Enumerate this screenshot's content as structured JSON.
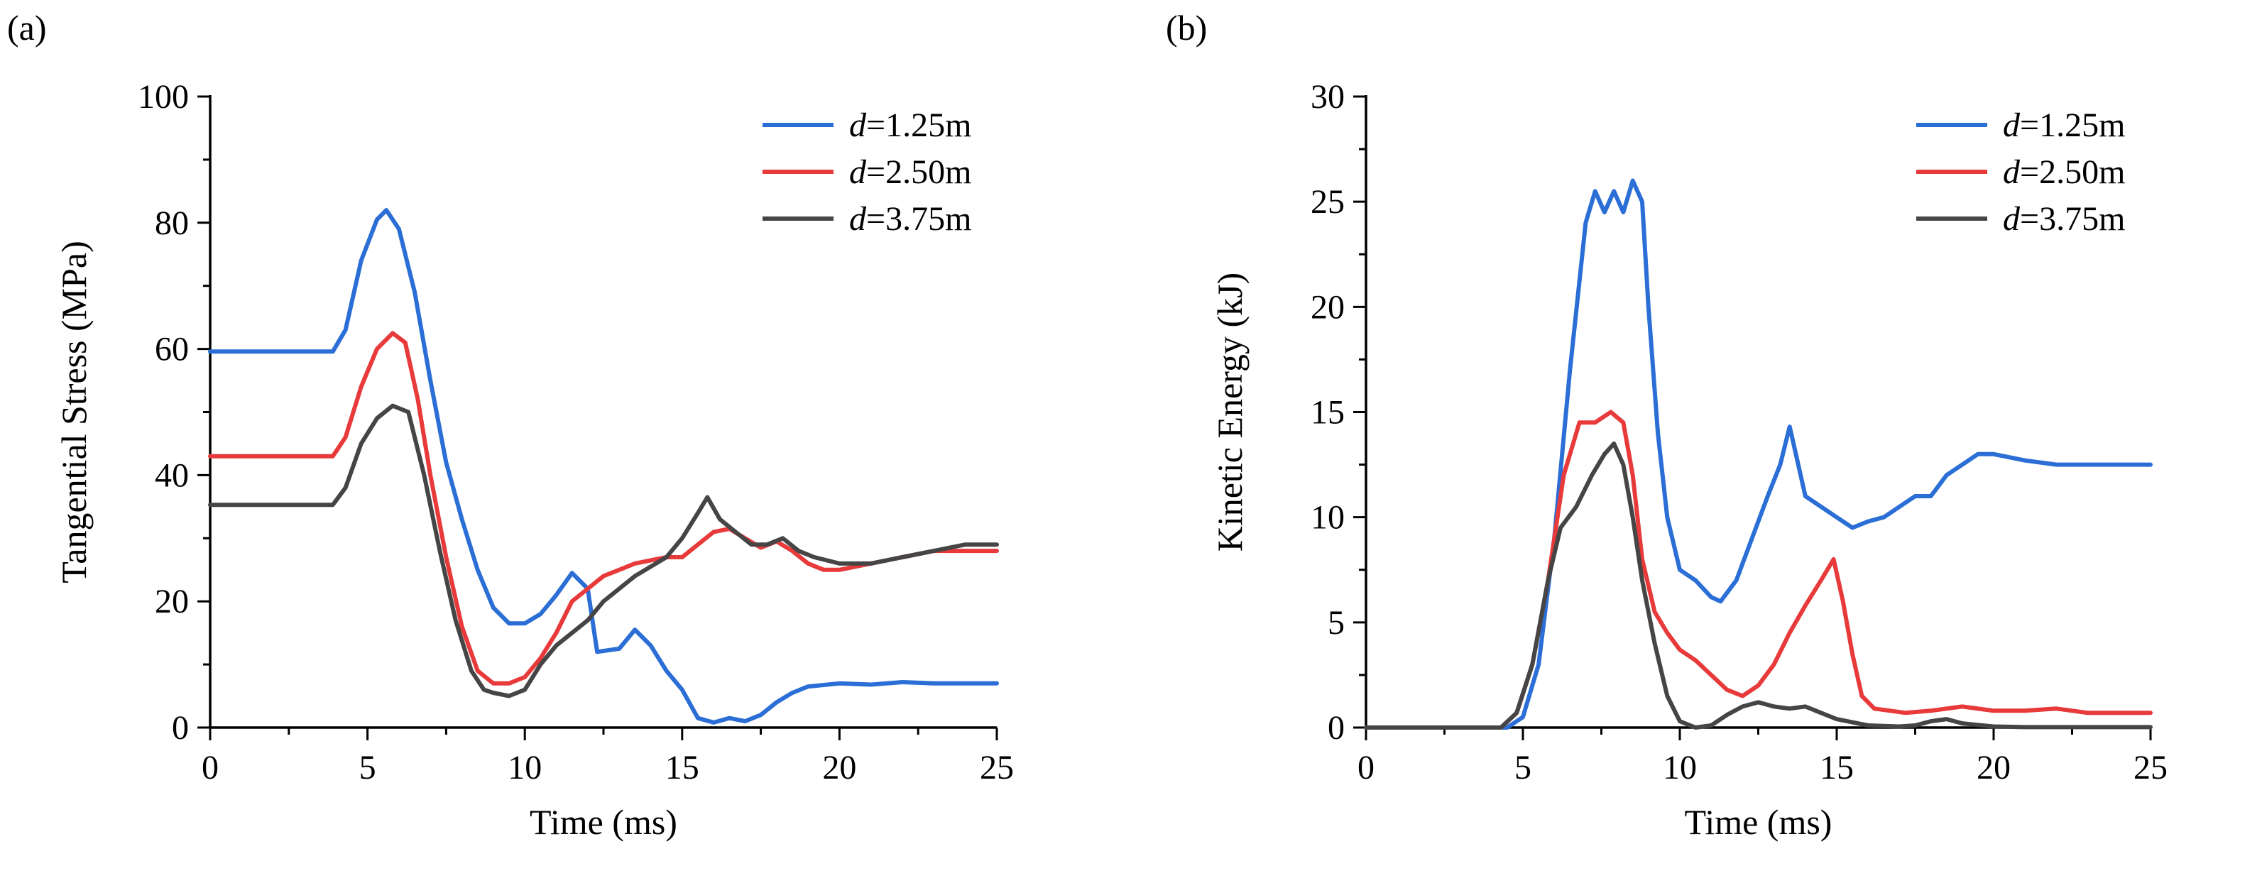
{
  "chart_data": [
    {
      "panel": "(a)",
      "type": "line",
      "title": "",
      "xlabel": "Time (ms)",
      "ylabel": "Tangential Stress (MPa)",
      "xlim": [
        0,
        25
      ],
      "ylim": [
        0,
        100
      ],
      "xticks": [
        0,
        5,
        10,
        15,
        20,
        25
      ],
      "yticks": [
        0,
        20,
        40,
        60,
        80,
        100
      ],
      "grid": false,
      "legend_position": "top-right",
      "series": [
        {
          "name": "d=1.25m",
          "var": "d",
          "rest": "=1.25m",
          "color": "#2a6ed6",
          "x": [
            0,
            3.9,
            4.3,
            4.8,
            5.3,
            5.6,
            6.0,
            6.5,
            7.0,
            7.5,
            8.0,
            8.5,
            9.0,
            9.5,
            10.0,
            10.5,
            11.0,
            11.5,
            12.0,
            12.3,
            13.0,
            13.5,
            14.0,
            14.5,
            15.0,
            15.5,
            16.0,
            16.5,
            17.0,
            17.5,
            18.0,
            18.5,
            19.0,
            20.0,
            21.0,
            22.0,
            23.0,
            24.0,
            25.0
          ],
          "y": [
            59.6,
            59.6,
            63,
            74,
            80.5,
            82,
            79,
            69,
            55,
            42,
            33,
            25,
            19,
            16.5,
            16.5,
            18,
            21,
            24.5,
            22,
            12,
            12.5,
            15.5,
            13,
            9,
            6,
            1.5,
            0.8,
            1.5,
            1,
            2,
            4,
            5.5,
            6.5,
            7,
            6.8,
            7.2,
            7,
            7,
            7
          ]
        },
        {
          "name": "d=2.50m",
          "var": "d",
          "rest": "=2.50m",
          "color": "#e83a3a",
          "x": [
            0,
            3.9,
            4.3,
            4.8,
            5.3,
            5.8,
            6.2,
            6.6,
            7.0,
            7.5,
            8.0,
            8.5,
            9.0,
            9.5,
            10.0,
            10.5,
            11.0,
            11.5,
            12.0,
            12.5,
            13.0,
            13.5,
            14.0,
            14.5,
            15.0,
            15.5,
            16.0,
            16.5,
            17.0,
            17.5,
            18.0,
            18.5,
            19.0,
            19.5,
            20.0,
            21.0,
            22.0,
            23.0,
            24.0,
            25.0
          ],
          "y": [
            43,
            43,
            46,
            54,
            60,
            62.5,
            61,
            52,
            40,
            27,
            16,
            9,
            7,
            7,
            8,
            11,
            15,
            20,
            22,
            24,
            25,
            26,
            26.5,
            27,
            27,
            29,
            31,
            31.5,
            30,
            28.5,
            29.5,
            28,
            26,
            25,
            25,
            26,
            27,
            28,
            28,
            28
          ]
        },
        {
          "name": "d=3.75m",
          "var": "d",
          "rest": "=3.75m",
          "color": "#454545",
          "x": [
            0,
            3.9,
            4.3,
            4.8,
            5.3,
            5.8,
            6.3,
            6.8,
            7.3,
            7.8,
            8.3,
            8.7,
            9.0,
            9.5,
            10.0,
            10.5,
            11.0,
            11.5,
            12.0,
            12.5,
            13.0,
            13.5,
            14.0,
            14.5,
            15.0,
            15.5,
            15.8,
            16.2,
            16.7,
            17.2,
            17.7,
            18.2,
            18.7,
            19.2,
            20.0,
            21.0,
            22.0,
            23.0,
            24.0,
            25.0
          ],
          "y": [
            35.3,
            35.3,
            38,
            45,
            49,
            51,
            50,
            40,
            28,
            17,
            9,
            6,
            5.5,
            5,
            6,
            10,
            13,
            15,
            17,
            20,
            22,
            24,
            25.5,
            27,
            30,
            34,
            36.5,
            33,
            31,
            29,
            29,
            30,
            28,
            27,
            26,
            26,
            27,
            28,
            29,
            29
          ]
        }
      ]
    },
    {
      "panel": "(b)",
      "type": "line",
      "title": "",
      "xlabel": "Time (ms)",
      "ylabel": "Kinetic Energy (kJ)",
      "xlim": [
        0,
        25
      ],
      "ylim": [
        0,
        30
      ],
      "xticks": [
        0,
        5,
        10,
        15,
        20,
        25
      ],
      "yticks": [
        0,
        5,
        10,
        15,
        20,
        25,
        30
      ],
      "grid": false,
      "legend_position": "top-right",
      "series": [
        {
          "name": "d=1.25m",
          "var": "d",
          "rest": "=1.25m",
          "color": "#2a6ed6",
          "x": [
            0,
            4.5,
            5.0,
            5.5,
            6.0,
            6.5,
            7.0,
            7.3,
            7.6,
            7.9,
            8.2,
            8.5,
            8.8,
            9.0,
            9.3,
            9.6,
            10.0,
            10.5,
            11.0,
            11.3,
            11.8,
            12.3,
            12.8,
            13.2,
            13.5,
            13.7,
            14.0,
            14.5,
            15.0,
            15.5,
            16.0,
            16.5,
            17.0,
            17.5,
            18.0,
            18.5,
            19.0,
            19.5,
            20.0,
            21.0,
            22.0,
            23.0,
            24.0,
            25.0
          ],
          "y": [
            0,
            0,
            0.5,
            3,
            9,
            17,
            24,
            25.5,
            24.5,
            25.5,
            24.5,
            26,
            25,
            20,
            14,
            10,
            7.5,
            7,
            6.2,
            6,
            7,
            9,
            11,
            12.5,
            14.3,
            13,
            11,
            10.5,
            10,
            9.5,
            9.8,
            10,
            10.5,
            11,
            11,
            12,
            12.5,
            13,
            13,
            12.7,
            12.5,
            12.5,
            12.5,
            12.5
          ]
        },
        {
          "name": "d=2.50m",
          "var": "d",
          "rest": "=2.50m",
          "color": "#e83a3a",
          "x": [
            0,
            4.3,
            4.8,
            5.3,
            5.8,
            6.3,
            6.8,
            7.3,
            7.8,
            8.2,
            8.5,
            8.8,
            9.2,
            9.6,
            10.0,
            10.5,
            11.0,
            11.5,
            12.0,
            12.5,
            13.0,
            13.5,
            14.0,
            14.5,
            14.9,
            15.2,
            15.5,
            15.8,
            16.2,
            16.7,
            17.2,
            18.0,
            19.0,
            20.0,
            21.0,
            22.0,
            23.0,
            24.0,
            25.0
          ],
          "y": [
            0,
            0,
            0.7,
            3,
            7,
            12,
            14.5,
            14.5,
            15,
            14.5,
            12,
            8,
            5.5,
            4.5,
            3.7,
            3.2,
            2.5,
            1.8,
            1.5,
            2,
            3,
            4.5,
            5.8,
            7,
            8,
            6,
            3.5,
            1.5,
            0.9,
            0.8,
            0.7,
            0.8,
            1,
            0.8,
            0.8,
            0.9,
            0.7,
            0.7,
            0.7
          ]
        },
        {
          "name": "d=3.75m",
          "var": "d",
          "rest": "=3.75m",
          "color": "#454545",
          "x": [
            0,
            4.3,
            4.8,
            5.3,
            5.8,
            6.2,
            6.7,
            7.2,
            7.6,
            7.9,
            8.2,
            8.5,
            8.8,
            9.2,
            9.6,
            10.0,
            10.5,
            11.0,
            11.5,
            12.0,
            12.5,
            13.0,
            13.5,
            14.0,
            14.5,
            15.0,
            16.0,
            17.0,
            17.5,
            18.0,
            18.5,
            19.0,
            20.0,
            21.0,
            22.0,
            23.0,
            24.0,
            25.0
          ],
          "y": [
            0,
            0,
            0.7,
            3,
            7,
            9.5,
            10.5,
            12,
            13,
            13.5,
            12.5,
            10,
            7,
            4,
            1.5,
            0.3,
            0,
            0.1,
            0.6,
            1,
            1.2,
            1,
            0.9,
            1,
            0.7,
            0.4,
            0.1,
            0.05,
            0.1,
            0.3,
            0.4,
            0.2,
            0.05,
            0.02,
            0.02,
            0.02,
            0.02,
            0.02
          ]
        }
      ]
    }
  ]
}
